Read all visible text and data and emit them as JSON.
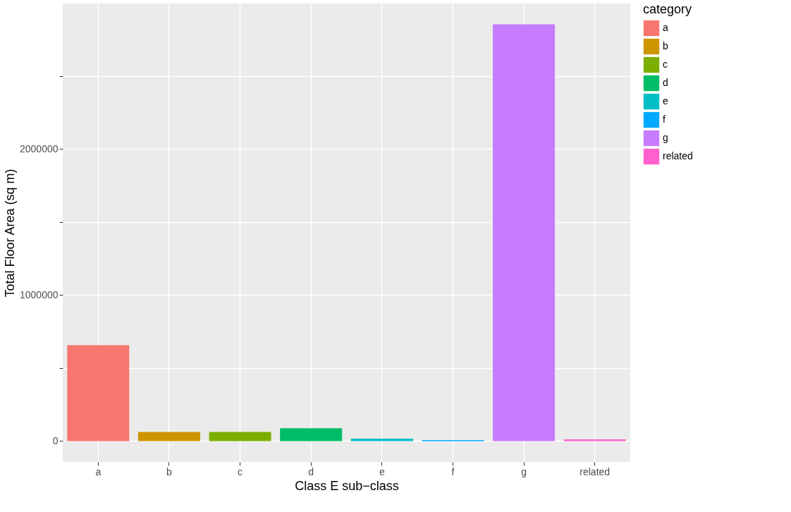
{
  "chart_data": {
    "type": "bar",
    "xlabel": "Class E sub−class",
    "ylabel": "Total Floor Area (sq m)",
    "legend_title": "category",
    "categories": [
      "a",
      "b",
      "c",
      "d",
      "e",
      "f",
      "g",
      "related"
    ],
    "stacked": true,
    "series": [
      {
        "name": "a",
        "color": "#f8766d",
        "values": [
          657000,
          null,
          null,
          null,
          null,
          null,
          null,
          null
        ]
      },
      {
        "name": "b",
        "color": "#cd9600",
        "values": [
          null,
          62000,
          null,
          null,
          null,
          null,
          null,
          null
        ]
      },
      {
        "name": "c",
        "color": "#7cae00",
        "values": [
          null,
          null,
          62000,
          null,
          null,
          null,
          null,
          null
        ]
      },
      {
        "name": "d",
        "color": "#00be67",
        "values": [
          null,
          null,
          null,
          88000,
          null,
          null,
          null,
          null
        ]
      },
      {
        "name": "e",
        "color": "#00bfc4",
        "values": [
          null,
          null,
          null,
          null,
          17000,
          null,
          null,
          null
        ]
      },
      {
        "name": "f",
        "color": "#00a9ff",
        "values": [
          null,
          null,
          null,
          null,
          null,
          7000,
          null,
          null
        ]
      },
      {
        "name": "g",
        "color": "#c77cff",
        "values": [
          null,
          null,
          null,
          null,
          null,
          null,
          2854000,
          null
        ]
      },
      {
        "name": "related",
        "color": "#ff61cc",
        "values": [
          null,
          null,
          null,
          null,
          null,
          null,
          null,
          12000
        ]
      }
    ],
    "ylim": [
      -142700,
      2996700
    ],
    "yticks": [
      0,
      {
        "value": 500000,
        "label": null
      },
      1000000,
      {
        "value": 1500000,
        "label": null
      },
      2000000,
      {
        "value": 2500000,
        "label": null
      }
    ],
    "grid": true,
    "legend": "right"
  }
}
